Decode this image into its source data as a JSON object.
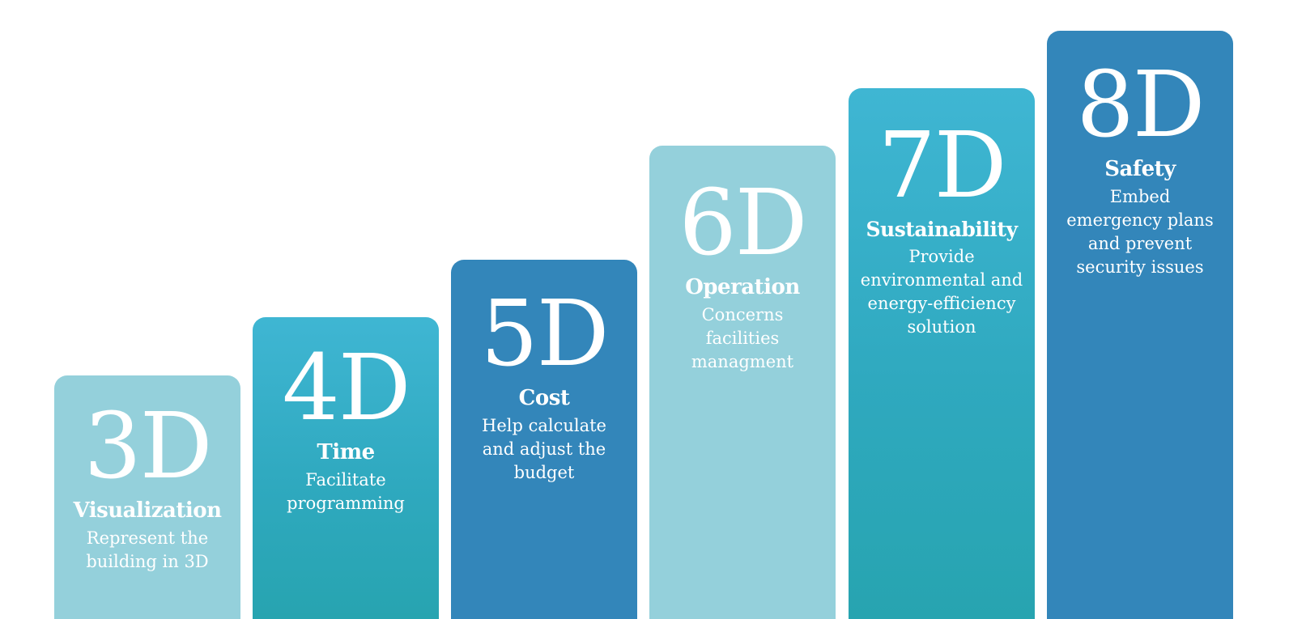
{
  "steps": [
    {
      "dimension": "3D",
      "title": "Visualization",
      "description": "Represent the\nbuilding in 3D",
      "color": "#94d0db"
    },
    {
      "dimension": "4D",
      "title": "Time",
      "description": "Facilitate\nprogramming",
      "color": "#33acc6"
    },
    {
      "dimension": "5D",
      "title": "Cost",
      "description": "Help calculate\nand adjust the\nbudget",
      "color": "#3386ba"
    },
    {
      "dimension": "6D",
      "title": "Operation",
      "description": "Concerns\nfacilities\nmanagment",
      "color": "#94d0db"
    },
    {
      "dimension": "7D",
      "title": "Sustainability",
      "description": "Provide\nenvironmental and\nenergy-efficiency\nsolution",
      "color": "#33acc6"
    },
    {
      "dimension": "8D",
      "title": "Safety",
      "description": "Embed\nemergency plans\nand prevent\nsecurity issues",
      "color": "#3386ba"
    }
  ]
}
